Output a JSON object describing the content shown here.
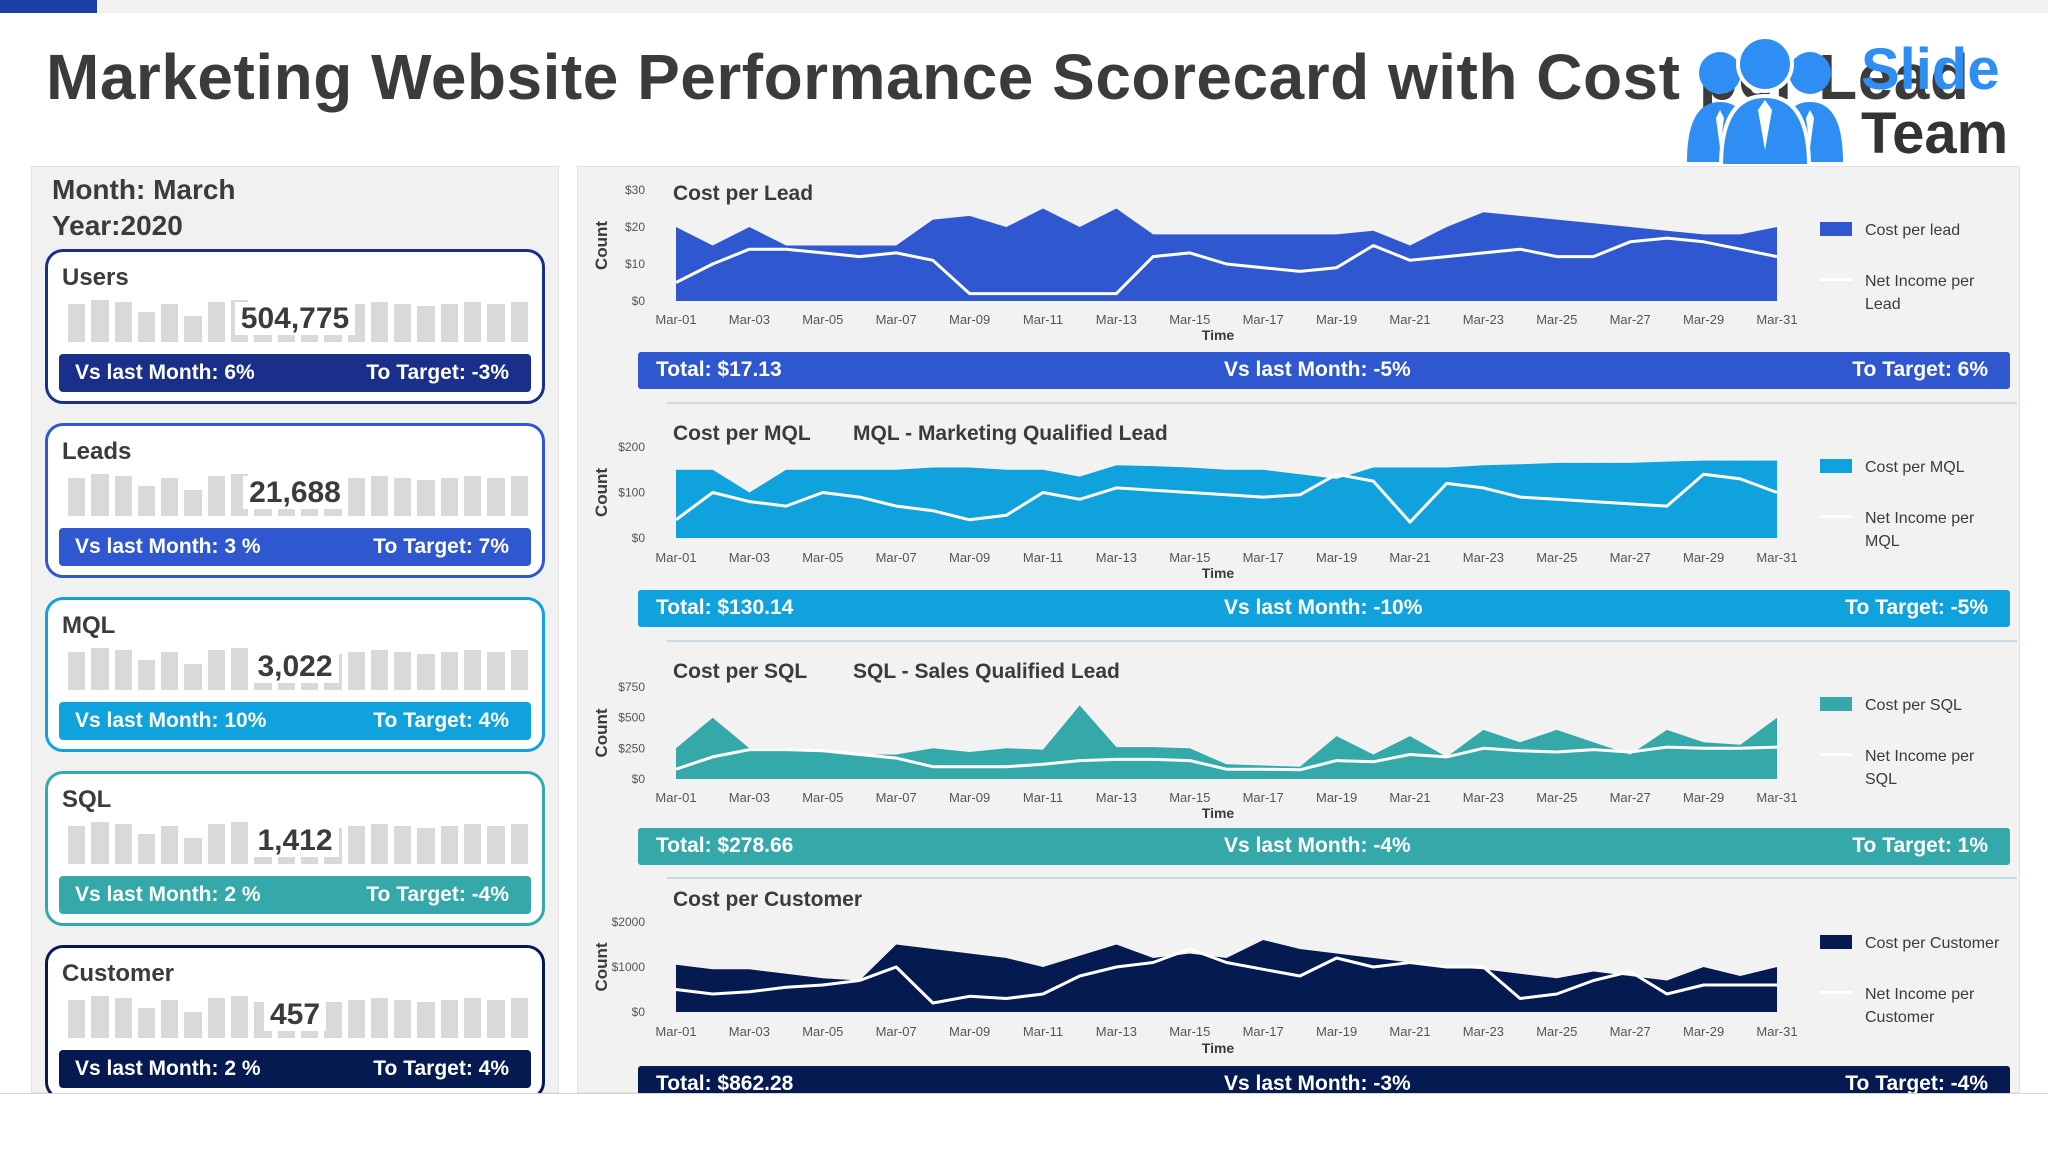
{
  "title": "Marketing Website Performance Scorecard with Cost per Lead",
  "logo": {
    "line1": "Slide",
    "line2": "Team"
  },
  "period": {
    "month": "Month: March",
    "year": "Year:2020"
  },
  "colors": {
    "users": "#1a2f8a",
    "leads": "#2f58d0",
    "mql": "#10a2dc",
    "sql": "#35a9a9",
    "customer": "#061a52"
  },
  "kpi_cards": [
    {
      "label": "Users",
      "value": "504,775",
      "vs_last_month": "Vs last Month: 6%",
      "to_target": "To Target: -3%"
    },
    {
      "label": "Leads",
      "value": "21,688",
      "vs_last_month": "Vs last Month: 3 %",
      "to_target": "To Target: 7%"
    },
    {
      "label": "MQL",
      "value": "3,022",
      "vs_last_month": "Vs last Month: 10%",
      "to_target": "To Target: 4%"
    },
    {
      "label": "SQL",
      "value": "1,412",
      "vs_last_month": "Vs last Month: 2 %",
      "to_target": "To Target: -4%"
    },
    {
      "label": "Customer",
      "value": "457",
      "vs_last_month": "Vs last Month: 2 %",
      "to_target": "To Target: 4%"
    }
  ],
  "chart_data": [
    {
      "type": "area",
      "title": "Cost per Lead",
      "subtitle": "",
      "xlabel": "Time",
      "ylabel": "Count",
      "ylim": [
        0,
        30
      ],
      "yticks": [
        0,
        10,
        20,
        30
      ],
      "ytick_labels": [
        "$0",
        "$10",
        "$20",
        "$30"
      ],
      "xtick_labels": [
        "Mar-01",
        "Mar-03",
        "Mar-05",
        "Mar-07",
        "Mar-09",
        "Mar-11",
        "Mar-13",
        "Mar-15",
        "Mar-17",
        "Mar-19",
        "Mar-21",
        "Mar-23",
        "Mar-25",
        "Mar-27",
        "Mar-29",
        "Mar-31"
      ],
      "x": [
        1,
        2,
        3,
        4,
        5,
        6,
        7,
        8,
        9,
        10,
        11,
        12,
        13,
        14,
        15,
        16,
        17,
        18,
        19,
        20,
        21,
        22,
        23,
        24,
        25,
        26,
        27,
        28,
        29,
        30,
        31
      ],
      "series": [
        {
          "name": "Cost per lead",
          "kind": "area",
          "color": "#2f58d0",
          "values": [
            20,
            15,
            20,
            15,
            15,
            15,
            15,
            22,
            23,
            20,
            25,
            20,
            25,
            18,
            18,
            18,
            18,
            18,
            18,
            19,
            15,
            20,
            24,
            23,
            22,
            21,
            20,
            19,
            18,
            18,
            20
          ]
        },
        {
          "name": "Net Income per Lead",
          "kind": "line",
          "color": "#ffffff",
          "values": [
            5,
            10,
            14,
            14,
            13,
            12,
            13,
            11,
            2,
            2,
            2,
            2,
            2,
            12,
            13,
            10,
            9,
            8,
            9,
            15,
            11,
            12,
            13,
            14,
            12,
            12,
            16,
            17,
            16,
            14,
            12
          ]
        }
      ],
      "legend": "right",
      "summary": {
        "total": "Total: $17.13",
        "vs_last_month": "Vs last Month: -5%",
        "to_target": "To  Target: 6%",
        "color": "#2f58d0"
      }
    },
    {
      "type": "area",
      "title": "Cost per MQL",
      "subtitle": "MQL - Marketing Qualified Lead",
      "xlabel": "Time",
      "ylabel": "Count",
      "ylim": [
        0,
        200
      ],
      "yticks": [
        0,
        100,
        200
      ],
      "ytick_labels": [
        "$0",
        "$100",
        "$200"
      ],
      "xtick_labels": [
        "Mar-01",
        "Mar-03",
        "Mar-05",
        "Mar-07",
        "Mar-09",
        "Mar-11",
        "Mar-13",
        "Mar-15",
        "Mar-17",
        "Mar-19",
        "Mar-21",
        "Mar-23",
        "Mar-25",
        "Mar-27",
        "Mar-29",
        "Mar-31"
      ],
      "x": [
        1,
        2,
        3,
        4,
        5,
        6,
        7,
        8,
        9,
        10,
        11,
        12,
        13,
        14,
        15,
        16,
        17,
        18,
        19,
        20,
        21,
        22,
        23,
        24,
        25,
        26,
        27,
        28,
        29,
        30,
        31
      ],
      "series": [
        {
          "name": "Cost per MQL",
          "kind": "area",
          "color": "#10a2dc",
          "values": [
            150,
            150,
            100,
            150,
            150,
            150,
            150,
            155,
            155,
            150,
            150,
            135,
            160,
            158,
            155,
            150,
            150,
            140,
            130,
            155,
            155,
            155,
            160,
            162,
            165,
            165,
            165,
            168,
            170,
            170,
            170
          ]
        },
        {
          "name": "Net Income per MQL",
          "kind": "line",
          "color": "#ffffff",
          "values": [
            40,
            100,
            80,
            70,
            100,
            90,
            70,
            60,
            40,
            50,
            100,
            85,
            110,
            105,
            100,
            95,
            90,
            95,
            140,
            125,
            35,
            120,
            110,
            90,
            85,
            80,
            75,
            70,
            140,
            130,
            100
          ]
        }
      ],
      "legend": "right",
      "summary": {
        "total": "Total: $130.14",
        "vs_last_month": "Vs last Month: -10%",
        "to_target": "To  Target: -5%",
        "color": "#10a2dc"
      }
    },
    {
      "type": "area",
      "title": "Cost per SQL",
      "subtitle": "SQL - Sales Qualified Lead",
      "xlabel": "Time",
      "ylabel": "Count",
      "ylim": [
        0,
        750
      ],
      "yticks": [
        0,
        250,
        500,
        750
      ],
      "ytick_labels": [
        "$0",
        "$250",
        "$500",
        "$750"
      ],
      "xtick_labels": [
        "Mar-01",
        "Mar-03",
        "Mar-05",
        "Mar-07",
        "Mar-09",
        "Mar-11",
        "Mar-13",
        "Mar-15",
        "Mar-17",
        "Mar-19",
        "Mar-21",
        "Mar-23",
        "Mar-25",
        "Mar-27",
        "Mar-29",
        "Mar-31"
      ],
      "x": [
        1,
        2,
        3,
        4,
        5,
        6,
        7,
        8,
        9,
        10,
        11,
        12,
        13,
        14,
        15,
        16,
        17,
        18,
        19,
        20,
        21,
        22,
        23,
        24,
        25,
        26,
        27,
        28,
        29,
        30,
        31
      ],
      "series": [
        {
          "name": "Cost per SQL",
          "kind": "area",
          "color": "#35a9a9",
          "values": [
            250,
            500,
            250,
            250,
            225,
            200,
            200,
            250,
            220,
            250,
            240,
            600,
            260,
            260,
            250,
            120,
            110,
            100,
            350,
            200,
            350,
            180,
            400,
            300,
            400,
            300,
            200,
            400,
            300,
            280,
            500
          ]
        },
        {
          "name": "Net Income per SQL",
          "kind": "line",
          "color": "#ffffff",
          "values": [
            80,
            180,
            240,
            240,
            230,
            200,
            170,
            100,
            100,
            100,
            120,
            150,
            160,
            160,
            150,
            80,
            80,
            75,
            150,
            140,
            200,
            180,
            250,
            230,
            220,
            240,
            220,
            260,
            250,
            250,
            260
          ]
        }
      ],
      "legend": "right",
      "summary": {
        "total": "Total: $278.66",
        "vs_last_month": "Vs last Month: -4%",
        "to_target": "To  Target: 1%",
        "color": "#35a9a9"
      }
    },
    {
      "type": "area",
      "title": "Cost per Customer",
      "subtitle": "",
      "xlabel": "Time",
      "ylabel": "Count",
      "ylim": [
        0,
        2000
      ],
      "yticks": [
        0,
        1000,
        2000
      ],
      "ytick_labels": [
        "$0",
        "$1000",
        "$2000"
      ],
      "xtick_labels": [
        "Mar-01",
        "Mar-03",
        "Mar-05",
        "Mar-07",
        "Mar-09",
        "Mar-11",
        "Mar-13",
        "Mar-15",
        "Mar-17",
        "Mar-19",
        "Mar-21",
        "Mar-23",
        "Mar-25",
        "Mar-27",
        "Mar-29",
        "Mar-31"
      ],
      "x": [
        1,
        2,
        3,
        4,
        5,
        6,
        7,
        8,
        9,
        10,
        11,
        12,
        13,
        14,
        15,
        16,
        17,
        18,
        19,
        20,
        21,
        22,
        23,
        24,
        25,
        26,
        27,
        28,
        29,
        30,
        31
      ],
      "series": [
        {
          "name": "Cost per Customer",
          "kind": "area",
          "color": "#061a52",
          "values": [
            1050,
            950,
            950,
            850,
            750,
            700,
            1500,
            1400,
            1300,
            1200,
            1000,
            1250,
            1500,
            1200,
            1300,
            1200,
            1600,
            1400,
            1300,
            1200,
            1100,
            1000,
            950,
            850,
            750,
            900,
            800,
            700,
            1000,
            800,
            1000
          ]
        },
        {
          "name": "Net Income per Customer",
          "kind": "line",
          "color": "#ffffff",
          "values": [
            500,
            400,
            450,
            550,
            600,
            700,
            1000,
            200,
            350,
            300,
            400,
            800,
            1000,
            1100,
            1400,
            1100,
            950,
            800,
            1200,
            1000,
            1100,
            1000,
            1000,
            300,
            400,
            700,
            900,
            400,
            600,
            600,
            600
          ]
        }
      ],
      "legend": "right",
      "summary": {
        "total": "Total: $862.28",
        "vs_last_month": "Vs last Month: -3%",
        "to_target": "To  Target: -4%",
        "color": "#061a52"
      }
    }
  ]
}
